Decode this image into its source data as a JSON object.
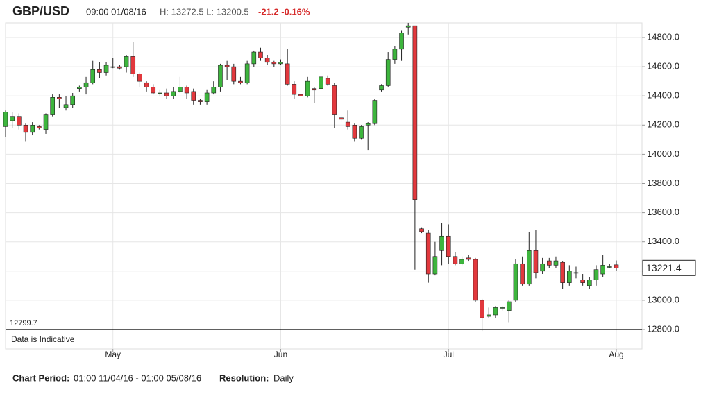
{
  "header": {
    "symbol": "GBP/USD",
    "time": "09:00 01/08/16",
    "high_low": "H: 13272.5 L: 13200.5",
    "change": "-21.2 -0.16%"
  },
  "chart_data": {
    "type": "candlestick",
    "categories": [
      null,
      null,
      null,
      null,
      null,
      null,
      null,
      null,
      null,
      null,
      null,
      null,
      null,
      null,
      null,
      null,
      "May",
      null,
      null,
      null,
      null,
      null,
      null,
      null,
      null,
      null,
      null,
      null,
      null,
      null,
      null,
      null,
      null,
      null,
      null,
      null,
      null,
      null,
      null,
      null,
      null,
      "Jun",
      null,
      null,
      null,
      null,
      null,
      null,
      null,
      null,
      null,
      null,
      null,
      null,
      null,
      null,
      null,
      null,
      null,
      null,
      null,
      null,
      null,
      null,
      null,
      null,
      "Jul",
      null,
      null,
      null,
      null,
      null,
      null,
      null,
      null,
      null,
      null,
      null,
      null,
      null,
      null,
      null,
      null,
      null,
      null,
      null,
      null,
      null,
      null,
      null,
      null,
      "Aug"
    ],
    "open": [
      14190,
      14230,
      14260,
      14200,
      14150,
      14190,
      14170,
      14270,
      14390,
      14320,
      14340,
      14450,
      14460,
      14490,
      14580,
      14560,
      14600,
      14600,
      14600,
      14670,
      14550,
      14490,
      14460,
      14420,
      14420,
      14400,
      14430,
      14460,
      14430,
      14370,
      14360,
      14420,
      14460,
      14610,
      14600,
      14500,
      14490,
      14620,
      14700,
      14660,
      14630,
      14620,
      14620,
      14480,
      14410,
      14400,
      14450,
      14450,
      14520,
      14470,
      14250,
      14220,
      14200,
      14110,
      14200,
      14210,
      14440,
      14470,
      14650,
      14720,
      14870,
      14880,
      13490,
      13460,
      13180,
      13340,
      13440,
      13300,
      13250,
      13290,
      13280,
      13000,
      12890,
      12900,
      12950,
      12930,
      13000,
      13250,
      13110,
      13340,
      13200,
      13270,
      13240,
      13260,
      13120,
      13190,
      13140,
      13100,
      13140,
      13180,
      13230,
      13242.6
    ],
    "high": [
      14300,
      14290,
      14280,
      14210,
      14220,
      14200,
      14280,
      14410,
      14410,
      14400,
      14420,
      14470,
      14530,
      14640,
      14630,
      14630,
      14660,
      14610,
      14680,
      14770,
      14560,
      14500,
      14480,
      14440,
      14450,
      14460,
      14530,
      14470,
      14450,
      14380,
      14440,
      14500,
      14620,
      14640,
      14620,
      14530,
      14640,
      14710,
      14730,
      14680,
      14640,
      14650,
      14720,
      14500,
      14430,
      14530,
      14460,
      14630,
      14540,
      14490,
      14270,
      14300,
      14210,
      14200,
      14220,
      14380,
      14480,
      14700,
      14740,
      14850,
      14900,
      14880,
      13500,
      13480,
      13400,
      13530,
      13520,
      13330,
      13300,
      13310,
      13290,
      13010,
      12950,
      12960,
      12960,
      13000,
      13280,
      13300,
      13470,
      13480,
      13290,
      13290,
      13300,
      13270,
      13240,
      13230,
      13180,
      13160,
      13240,
      13310,
      13250,
      13272.5
    ],
    "low": [
      14120,
      14180,
      14170,
      14090,
      14130,
      14170,
      14140,
      14260,
      14320,
      14300,
      14320,
      14430,
      14410,
      14480,
      14520,
      14540,
      14590,
      14580,
      14560,
      14530,
      14460,
      14430,
      14410,
      14400,
      14380,
      14380,
      14420,
      14380,
      14340,
      14340,
      14340,
      14410,
      14430,
      14510,
      14480,
      14480,
      14480,
      14600,
      14640,
      14610,
      14600,
      14610,
      14470,
      14380,
      14380,
      14390,
      14350,
      14440,
      14470,
      14180,
      14220,
      14170,
      14090,
      14100,
      14030,
      14200,
      14430,
      14460,
      14620,
      14640,
      14820,
      13210,
      13460,
      13120,
      13170,
      13240,
      13250,
      13240,
      13240,
      13270,
      12990,
      12790,
      12880,
      12880,
      12930,
      12850,
      12990,
      13100,
      13100,
      13150,
      13180,
      13220,
      13220,
      13080,
      13100,
      13150,
      13100,
      13080,
      13100,
      13160,
      13220,
      13200.5
    ],
    "close": [
      14290,
      14260,
      14200,
      14150,
      14200,
      14180,
      14270,
      14390,
      14380,
      14340,
      14400,
      14460,
      14490,
      14580,
      14560,
      14610,
      14600,
      14590,
      14670,
      14550,
      14500,
      14460,
      14420,
      14420,
      14400,
      14430,
      14460,
      14420,
      14370,
      14360,
      14420,
      14460,
      14610,
      14600,
      14500,
      14490,
      14620,
      14700,
      14660,
      14630,
      14620,
      14630,
      14480,
      14410,
      14400,
      14500,
      14440,
      14530,
      14480,
      14270,
      14240,
      14190,
      14110,
      14190,
      14210,
      14370,
      14470,
      14650,
      14720,
      14830,
      14880,
      13690,
      13470,
      13180,
      13300,
      13440,
      13300,
      13250,
      13280,
      13280,
      13000,
      12880,
      12900,
      12950,
      12950,
      12990,
      13250,
      13110,
      13340,
      13190,
      13250,
      13240,
      13270,
      13120,
      13200,
      13190,
      13120,
      13140,
      13210,
      13240,
      13230,
      13221.4
    ],
    "up_color": "#3db53d",
    "down_color": "#e2383d",
    "ylim": [
      12720,
      14900
    ],
    "yticks": [
      {
        "value": 12800,
        "label": "12800.0"
      },
      {
        "value": 13000,
        "label": "13000.0"
      },
      {
        "value": 13200,
        "label": "13200.0"
      },
      {
        "value": 13400,
        "label": "13400.0"
      },
      {
        "value": 13600,
        "label": "13600.0"
      },
      {
        "value": 13800,
        "label": "13800.0"
      },
      {
        "value": 14000,
        "label": "14000.0"
      },
      {
        "value": 14200,
        "label": "14200.0"
      },
      {
        "value": 14400,
        "label": "14400.0"
      },
      {
        "value": 14600,
        "label": "14600.0"
      },
      {
        "value": 14800,
        "label": "14800.0"
      }
    ],
    "period_low": 12799.7,
    "note": "Data is Indicative",
    "grid": true
  },
  "footer": {
    "period_label": "Chart Period:",
    "period": "01:00 11/04/16 - 01:00 05/08/16",
    "resolution_label": "Resolution:",
    "resolution": "Daily"
  }
}
